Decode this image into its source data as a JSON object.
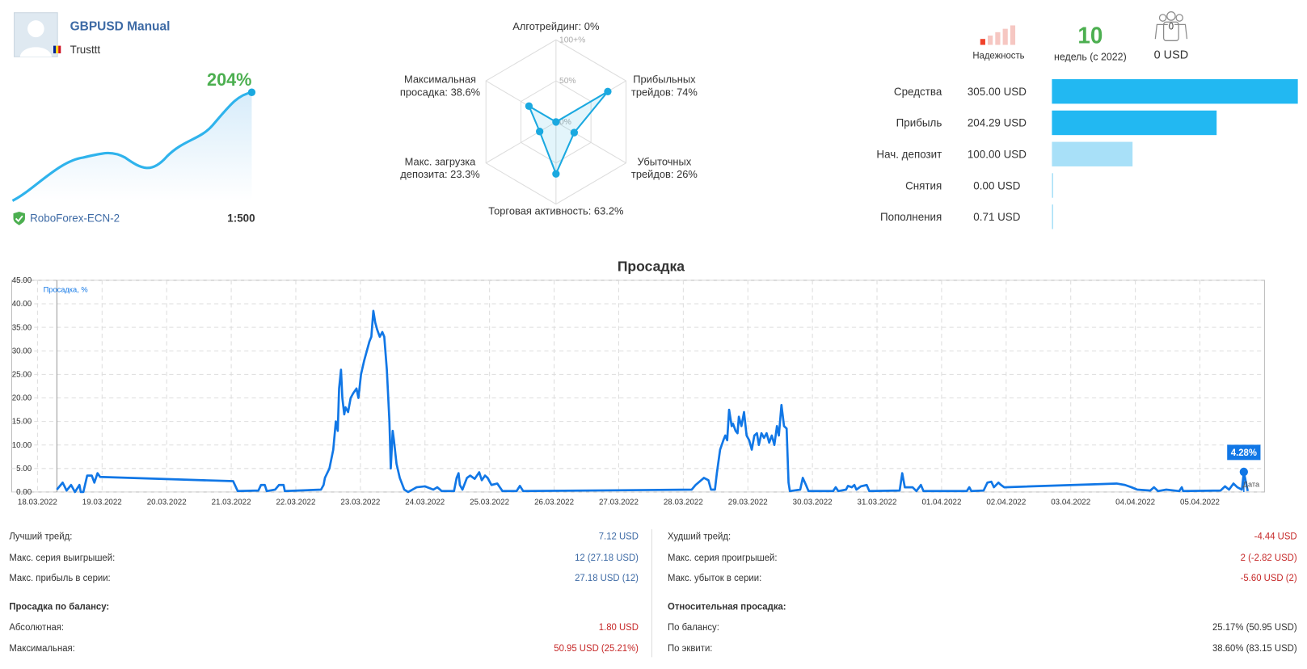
{
  "profile": {
    "name": "GBPUSD Manual",
    "author": "Trusttt",
    "growth": "204%",
    "broker": "RoboForex-ECN-2",
    "leverage": "1:500"
  },
  "radar": {
    "type": "radar",
    "labels": [
      "Алготрейдинг:",
      "Прибыльных трейдов:",
      "Убыточных трейдов:",
      "Торговая активность:",
      "Макс. загрузка депозита:",
      "Максимальная просадка:"
    ],
    "values": [
      0,
      74,
      26,
      63.2,
      23.3,
      38.6
    ],
    "value_labels": [
      "0%",
      "74%",
      "26%",
      "63.2%",
      "23.3%",
      "38.6%"
    ],
    "rlim": [
      0,
      100
    ],
    "rticks": [
      {
        "value": 0,
        "label": "0%"
      },
      {
        "value": 50,
        "label": "50%"
      },
      {
        "value": 100,
        "label": "100+%"
      }
    ],
    "color": "#1ba9e0"
  },
  "summary": {
    "reliability_label": "Надежность",
    "weeks": "10",
    "weeks_label": "недель (с 2022)",
    "subscribers": "0",
    "subscription_price": "0 USD"
  },
  "balance_chart": {
    "type": "hbar",
    "categories": [
      "Средства",
      "Прибыль",
      "Нач. депозит",
      "Снятия",
      "Пополнения"
    ],
    "values": [
      305,
      204.29,
      100,
      0,
      0.71
    ],
    "value_labels": [
      "305.00 USD",
      "204.29 USD",
      "100.00 USD",
      "0.00 USD",
      "0.71 USD"
    ],
    "colors": [
      "#22b8f2",
      "#22b8f2",
      "#a8e0f8",
      "#a8e0f8",
      "#a8e0f8"
    ]
  },
  "chart_data": {
    "type": "line",
    "title": "Просадка",
    "x_label": "Дата",
    "x": [
      0.3,
      0.39,
      0.45,
      0.52,
      0.58,
      0.65,
      0.67,
      0.71,
      0.77,
      0.84,
      0.88,
      0.93,
      0.97,
      3.03,
      3.1,
      3.42,
      3.46,
      3.52,
      3.55,
      3.68,
      3.74,
      3.81,
      3.83,
      4.39,
      4.43,
      4.45,
      4.52,
      4.58,
      4.62,
      4.65,
      4.67,
      4.7,
      4.72,
      4.75,
      4.77,
      4.81,
      4.85,
      4.89,
      4.94,
      4.97,
      5.01,
      5.06,
      5.1,
      5.14,
      5.17,
      5.2,
      5.23,
      5.26,
      5.3,
      5.34,
      5.37,
      5.41,
      5.45,
      5.47,
      5.5,
      5.52,
      5.56,
      5.61,
      5.68,
      5.74,
      5.87,
      6.0,
      6.13,
      6.19,
      6.26,
      6.45,
      6.49,
      6.52,
      6.54,
      6.58,
      6.65,
      6.7,
      6.77,
      6.84,
      6.88,
      6.93,
      6.97,
      7.03,
      7.12,
      7.2,
      7.42,
      7.47,
      7.52,
      10.13,
      10.19,
      10.32,
      10.39,
      10.43,
      10.49,
      10.52,
      10.57,
      10.62,
      10.65,
      10.68,
      10.71,
      10.75,
      10.77,
      10.81,
      10.84,
      10.86,
      10.9,
      10.94,
      10.98,
      11.02,
      11.06,
      11.1,
      11.14,
      11.17,
      11.21,
      11.25,
      11.29,
      11.33,
      11.37,
      11.41,
      11.45,
      11.48,
      11.52,
      11.56,
      11.6,
      11.63,
      11.65,
      11.81,
      11.85,
      11.9,
      11.94,
      12.32,
      12.36,
      12.4,
      12.52,
      12.55,
      12.61,
      12.65,
      12.68,
      12.75,
      12.84,
      12.88,
      13.35,
      13.39,
      13.43,
      13.55,
      13.61,
      13.68,
      13.72,
      14.39,
      14.43,
      14.46,
      14.65,
      14.71,
      14.77,
      14.81,
      14.88,
      14.92,
      14.97,
      16.71,
      16.84,
      16.94,
      17.03,
      17.23,
      17.29,
      17.35,
      17.48,
      17.68,
      17.72,
      17.74,
      18.32,
      18.39,
      18.45,
      18.52,
      18.58,
      18.65,
      18.68,
      18.74
    ],
    "series": [
      {
        "name": "Просадка, %",
        "color": "#1177e6",
        "values": [
          0.5,
          2,
          0.3,
          1.5,
          0,
          1.5,
          0,
          0,
          3.5,
          3.5,
          2,
          4,
          3.2,
          2.3,
          0.2,
          0.3,
          1.5,
          1.5,
          0.2,
          0.5,
          1.5,
          1.5,
          0.2,
          0.5,
          1.5,
          3,
          5,
          9,
          15,
          13,
          22,
          26,
          20,
          16.5,
          18,
          17,
          20,
          21,
          22,
          20,
          25,
          28,
          30,
          32,
          33,
          38.5,
          36,
          34.5,
          33,
          34,
          33,
          26,
          15,
          5,
          13,
          11,
          6,
          3,
          0.5,
          0,
          1,
          1.2,
          0.5,
          1,
          0.2,
          0.2,
          3,
          4,
          1.5,
          0.5,
          3,
          3.5,
          2.8,
          4.2,
          2.5,
          3.5,
          3,
          1.5,
          1.8,
          0.2,
          0.2,
          1.3,
          0.2,
          0.5,
          1.5,
          3,
          2.5,
          0.5,
          0.5,
          4,
          9,
          11,
          12,
          11,
          17.5,
          14,
          14.5,
          13,
          12.5,
          16,
          14,
          17,
          12,
          11,
          9,
          12,
          12.5,
          10,
          12.5,
          11.5,
          12.5,
          10.5,
          12,
          10,
          14,
          12,
          18.5,
          14,
          13.5,
          2,
          0.2,
          0.5,
          3,
          1.5,
          0.2,
          0.2,
          1,
          0.2,
          0.5,
          1.3,
          1,
          1.5,
          0.5,
          1.2,
          1.5,
          0.2,
          0.3,
          4,
          1,
          1,
          0.2,
          1.5,
          0.2,
          0.2,
          1,
          0.2,
          0.3,
          2,
          2.2,
          1,
          2,
          1.5,
          1,
          1.8,
          1.5,
          1,
          0.5,
          0.3,
          1,
          0.2,
          0.5,
          0.2,
          1,
          0.2,
          0.3,
          1.2,
          0.5,
          1.8,
          1,
          0.5,
          4.28,
          0.2
        ]
      }
    ],
    "annotation": {
      "x": 18.68,
      "y": 4.28,
      "label": "4.28%"
    },
    "xlim": [
      -0.4,
      19.0
    ],
    "xticks": [
      {
        "value": 0,
        "label": "18.03.2022"
      },
      {
        "value": 1,
        "label": "19.03.2022"
      },
      {
        "value": 2,
        "label": "20.03.2022"
      },
      {
        "value": 3,
        "label": "21.03.2022"
      },
      {
        "value": 4,
        "label": "22.03.2022"
      },
      {
        "value": 5,
        "label": "23.03.2022"
      },
      {
        "value": 6,
        "label": "24.03.2022"
      },
      {
        "value": 7,
        "label": "25.03.2022"
      },
      {
        "value": 8,
        "label": "26.03.2022"
      },
      {
        "value": 9,
        "label": "27.03.2022"
      },
      {
        "value": 10,
        "label": "28.03.2022"
      },
      {
        "value": 11,
        "label": "29.03.2022"
      },
      {
        "value": 12,
        "label": "30.03.2022"
      },
      {
        "value": 13,
        "label": "31.03.2022"
      },
      {
        "value": 14,
        "label": "01.04.2022"
      },
      {
        "value": 15,
        "label": "02.04.2022"
      },
      {
        "value": 16,
        "label": "03.04.2022"
      },
      {
        "value": 17,
        "label": "04.04.2022"
      },
      {
        "value": 18,
        "label": "05.04.2022"
      }
    ],
    "ylim": [
      0,
      45
    ],
    "yticks": [
      {
        "value": 0,
        "label": "0.00"
      },
      {
        "value": 5,
        "label": "5.00"
      },
      {
        "value": 10,
        "label": "10.00"
      },
      {
        "value": 15,
        "label": "15.00"
      },
      {
        "value": 20,
        "label": "20.00"
      },
      {
        "value": 25,
        "label": "25.00"
      },
      {
        "value": 30,
        "label": "30.00"
      },
      {
        "value": 35,
        "label": "35.00"
      },
      {
        "value": 40,
        "label": "40.00"
      },
      {
        "value": 45,
        "label": "45.00"
      }
    ],
    "grid": true
  },
  "stats": {
    "left": {
      "rows": [
        {
          "label": "Лучший трейд:",
          "value": "7.12 USD",
          "color": "#3d6aa5"
        },
        {
          "label": "Макс. серия выигрышей:",
          "value": "12 (27.18 USD)",
          "color": "#3d6aa5"
        },
        {
          "label": "Макс. прибыль в серии:",
          "value": "27.18 USD (12)",
          "color": "#3d6aa5"
        }
      ],
      "section": "Просадка по балансу:",
      "section_rows": [
        {
          "label": "Абсолютная:",
          "value": "1.80 USD",
          "color": "#c62828"
        },
        {
          "label": "Максимальная:",
          "value": "50.95 USD (25.21%)",
          "color": "#c62828"
        }
      ]
    },
    "right": {
      "rows": [
        {
          "label": "Худший трейд:",
          "value": "-4.44 USD",
          "color": "#c62828"
        },
        {
          "label": "Макс. серия проигрышей:",
          "value": "2 (-2.82 USD)",
          "color": "#c62828"
        },
        {
          "label": "Макс. убыток в серии:",
          "value": "-5.60 USD (2)",
          "color": "#c62828"
        }
      ],
      "section": "Относительная просадка:",
      "section_rows": [
        {
          "label": "По балансу:",
          "value": "25.17% (50.95 USD)",
          "color": "#333333"
        },
        {
          "label": "По эквити:",
          "value": "38.60% (83.15 USD)",
          "color": "#333333"
        }
      ]
    }
  }
}
